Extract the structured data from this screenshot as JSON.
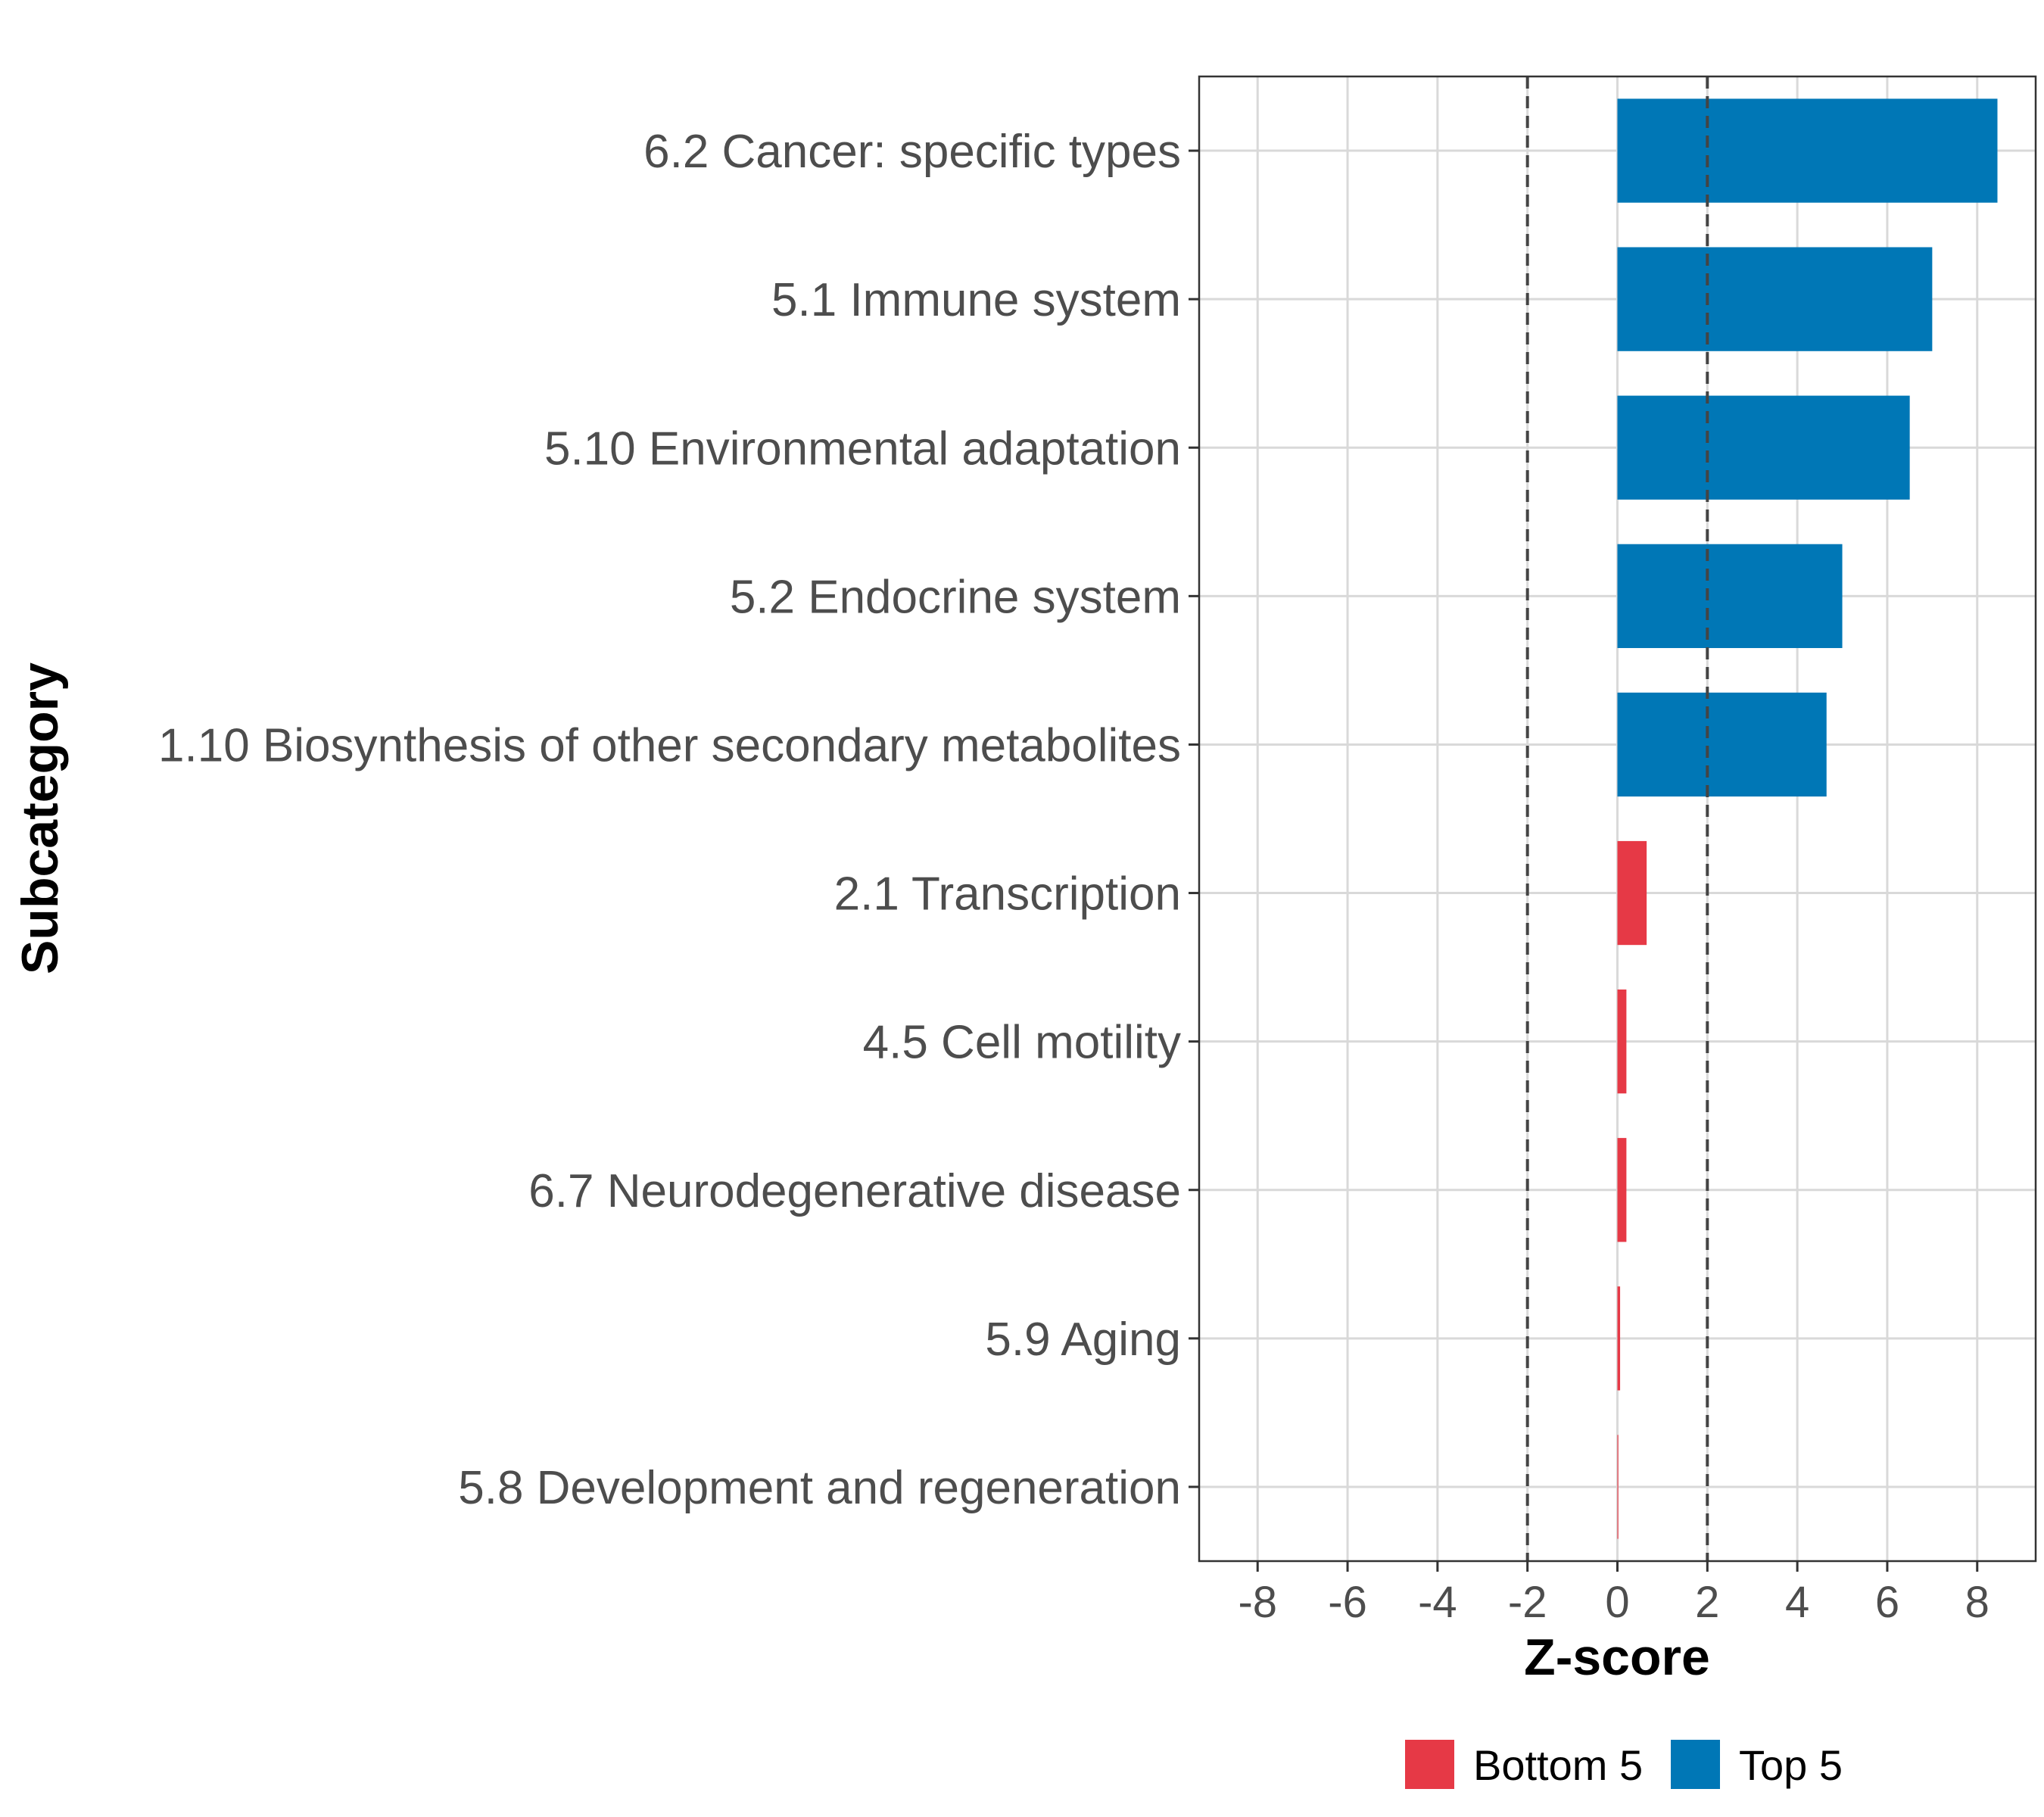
{
  "chart_data": {
    "type": "bar",
    "orientation": "horizontal",
    "xlabel": "Z-score",
    "ylabel": "Subcategory",
    "xlim": [
      -9.3,
      9.3
    ],
    "xticks": [
      -8,
      -6,
      -4,
      -2,
      0,
      2,
      4,
      6,
      8
    ],
    "xtick_labels": [
      "-8",
      "-6",
      "-4",
      "-2",
      "0",
      "2",
      "4",
      "6",
      "8"
    ],
    "reference_lines": [
      -2,
      2
    ],
    "grid": true,
    "legend_position": "bottom",
    "categories": [
      "6.2 Cancer: specific types",
      "5.1 Immune system",
      "5.10 Environmental adaptation",
      "5.2 Endocrine system",
      "1.10 Biosynthesis of other secondary metabolites",
      "2.1 Transcription",
      "4.5 Cell motility",
      "6.7 Neurodegenerative disease",
      "5.9 Aging",
      "5.8 Development and regeneration"
    ],
    "values": [
      8.45,
      7.0,
      6.5,
      5.0,
      4.65,
      0.65,
      0.2,
      0.2,
      0.06,
      0.02
    ],
    "groups": [
      "Top 5",
      "Top 5",
      "Top 5",
      "Top 5",
      "Top 5",
      "Bottom 5",
      "Bottom 5",
      "Bottom 5",
      "Bottom 5",
      "Bottom 5"
    ],
    "legend": [
      {
        "name": "Bottom 5",
        "color": "#e63946"
      },
      {
        "name": "Top 5",
        "color": "#0077b6"
      }
    ]
  }
}
